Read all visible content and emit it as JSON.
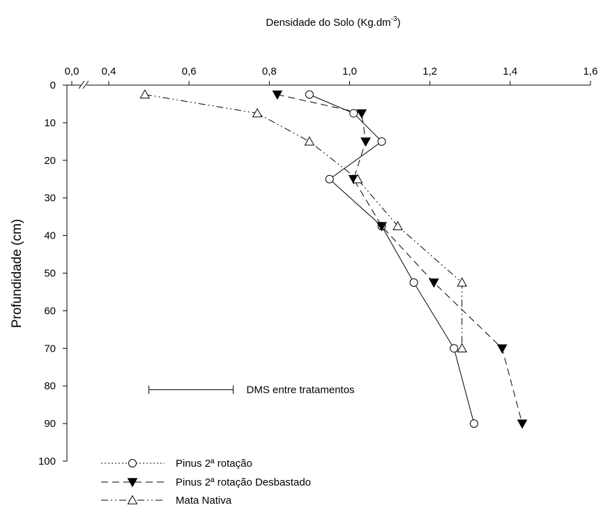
{
  "chart_data": {
    "type": "line",
    "title": "Densidade do Solo (Kg.dm",
    "title_superscript": "-3",
    "title_close": ")",
    "xlabel": "Densidade do Solo (Kg.dm-3)",
    "ylabel": "Profundidade (cm)",
    "x_axis_position": "top",
    "y_axis_inverted": true,
    "x_axis_break": true,
    "xlim": [
      0.4,
      1.6
    ],
    "ylim": [
      0,
      100
    ],
    "x_tick_labels": [
      "0,0",
      "0,4",
      "0,6",
      "0,8",
      "1,0",
      "1,2",
      "1,4",
      "1,6"
    ],
    "x_tick_values": [
      0.0,
      0.4,
      0.6,
      0.8,
      1.0,
      1.2,
      1.4,
      1.6
    ],
    "y_tick_labels": [
      "0",
      "10",
      "20",
      "30",
      "40",
      "50",
      "60",
      "70",
      "80",
      "90",
      "100"
    ],
    "y_tick_values": [
      0,
      10,
      20,
      30,
      40,
      50,
      60,
      70,
      80,
      90,
      100
    ],
    "grid": false,
    "legend_position": "bottom-left",
    "series": [
      {
        "name": "Pinus 2ª rotação",
        "marker": "open-circle",
        "line_style": "solid",
        "legend_line_style": "dotted",
        "points": [
          [
            0.9,
            2.5
          ],
          [
            1.01,
            7.5
          ],
          [
            1.08,
            15
          ],
          [
            0.95,
            25
          ],
          [
            1.08,
            37.5
          ],
          [
            1.16,
            52.5
          ],
          [
            1.26,
            70
          ],
          [
            1.31,
            90
          ]
        ]
      },
      {
        "name": "Pinus 2ª rotação Desbastado",
        "marker": "filled-down-triangle",
        "line_style": "dashed",
        "legend_line_style": "dashed",
        "points": [
          [
            0.82,
            2.5
          ],
          [
            1.03,
            7.5
          ],
          [
            1.04,
            15
          ],
          [
            1.01,
            25
          ],
          [
            1.08,
            37.5
          ],
          [
            1.21,
            52.5
          ],
          [
            1.38,
            70
          ],
          [
            1.43,
            90
          ]
        ]
      },
      {
        "name": "Mata Nativa",
        "marker": "open-up-triangle",
        "line_style": "dash-dot-dot",
        "legend_line_style": "dash-dot-dot",
        "points": [
          [
            0.49,
            2.5
          ],
          [
            0.77,
            7.5
          ],
          [
            0.9,
            15
          ],
          [
            1.02,
            25
          ],
          [
            1.12,
            37.5
          ],
          [
            1.28,
            52.5
          ],
          [
            1.28,
            70
          ]
        ]
      }
    ],
    "annotation": {
      "text": "DMS entre tratamentos",
      "type": "error-bar",
      "x_start": 0.5,
      "x_end": 0.71,
      "y": 81
    }
  }
}
